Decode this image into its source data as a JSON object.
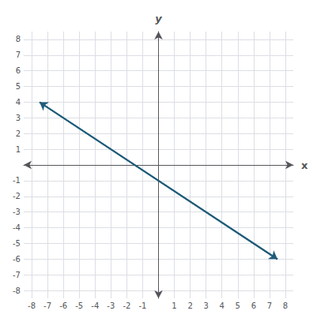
{
  "chart_data": {
    "type": "line",
    "xlabel": "x",
    "ylabel": "y",
    "x": [
      -7.5,
      7.5
    ],
    "series": [
      {
        "color": "#1F5C7A",
        "values": [
          4.00025,
          -6.00025
        ]
      }
    ],
    "xlim": [
      -8.5,
      8.5
    ],
    "ylim": [
      -8.5,
      8.5
    ],
    "xticks": [
      -8,
      -7,
      -6,
      -5,
      -4,
      -3,
      -2,
      -1,
      1,
      2,
      3,
      4,
      5,
      6,
      7,
      8
    ],
    "yticks": [
      -8,
      -7,
      -6,
      -5,
      -4,
      -3,
      -2,
      -1,
      1,
      2,
      3,
      4,
      5,
      6,
      7,
      8
    ],
    "grid": true
  }
}
